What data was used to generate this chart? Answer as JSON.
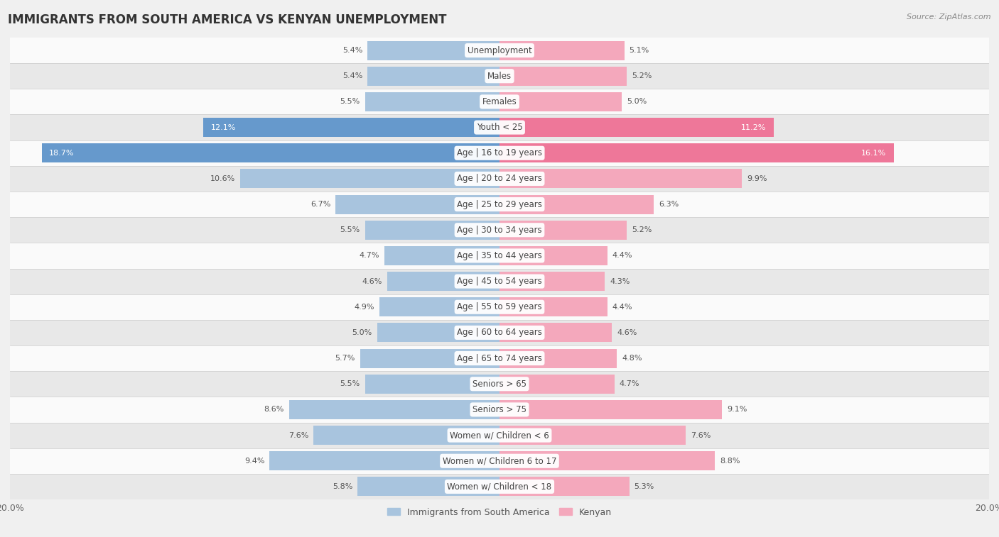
{
  "title": "IMMIGRANTS FROM SOUTH AMERICA VS KENYAN UNEMPLOYMENT",
  "source": "Source: ZipAtlas.com",
  "categories": [
    "Unemployment",
    "Males",
    "Females",
    "Youth < 25",
    "Age | 16 to 19 years",
    "Age | 20 to 24 years",
    "Age | 25 to 29 years",
    "Age | 30 to 34 years",
    "Age | 35 to 44 years",
    "Age | 45 to 54 years",
    "Age | 55 to 59 years",
    "Age | 60 to 64 years",
    "Age | 65 to 74 years",
    "Seniors > 65",
    "Seniors > 75",
    "Women w/ Children < 6",
    "Women w/ Children 6 to 17",
    "Women w/ Children < 18"
  ],
  "left_values": [
    5.4,
    5.4,
    5.5,
    12.1,
    18.7,
    10.6,
    6.7,
    5.5,
    4.7,
    4.6,
    4.9,
    5.0,
    5.7,
    5.5,
    8.6,
    7.6,
    9.4,
    5.8
  ],
  "right_values": [
    5.1,
    5.2,
    5.0,
    11.2,
    16.1,
    9.9,
    6.3,
    5.2,
    4.4,
    4.3,
    4.4,
    4.6,
    4.8,
    4.7,
    9.1,
    7.6,
    8.8,
    5.3
  ],
  "left_color": "#a8c4de",
  "right_color": "#f4a8bc",
  "highlight_left_color": "#6699cc",
  "highlight_right_color": "#ee7799",
  "highlight_rows": [
    3,
    4
  ],
  "bg_color": "#f0f0f0",
  "row_color_light": "#fafafa",
  "row_color_dark": "#e8e8e8",
  "separator_color": "#cccccc",
  "xlim": 20.0,
  "legend_left": "Immigrants from South America",
  "legend_right": "Kenyan",
  "title_fontsize": 12,
  "label_fontsize": 8.5,
  "value_fontsize": 8.0,
  "bar_height": 0.75
}
